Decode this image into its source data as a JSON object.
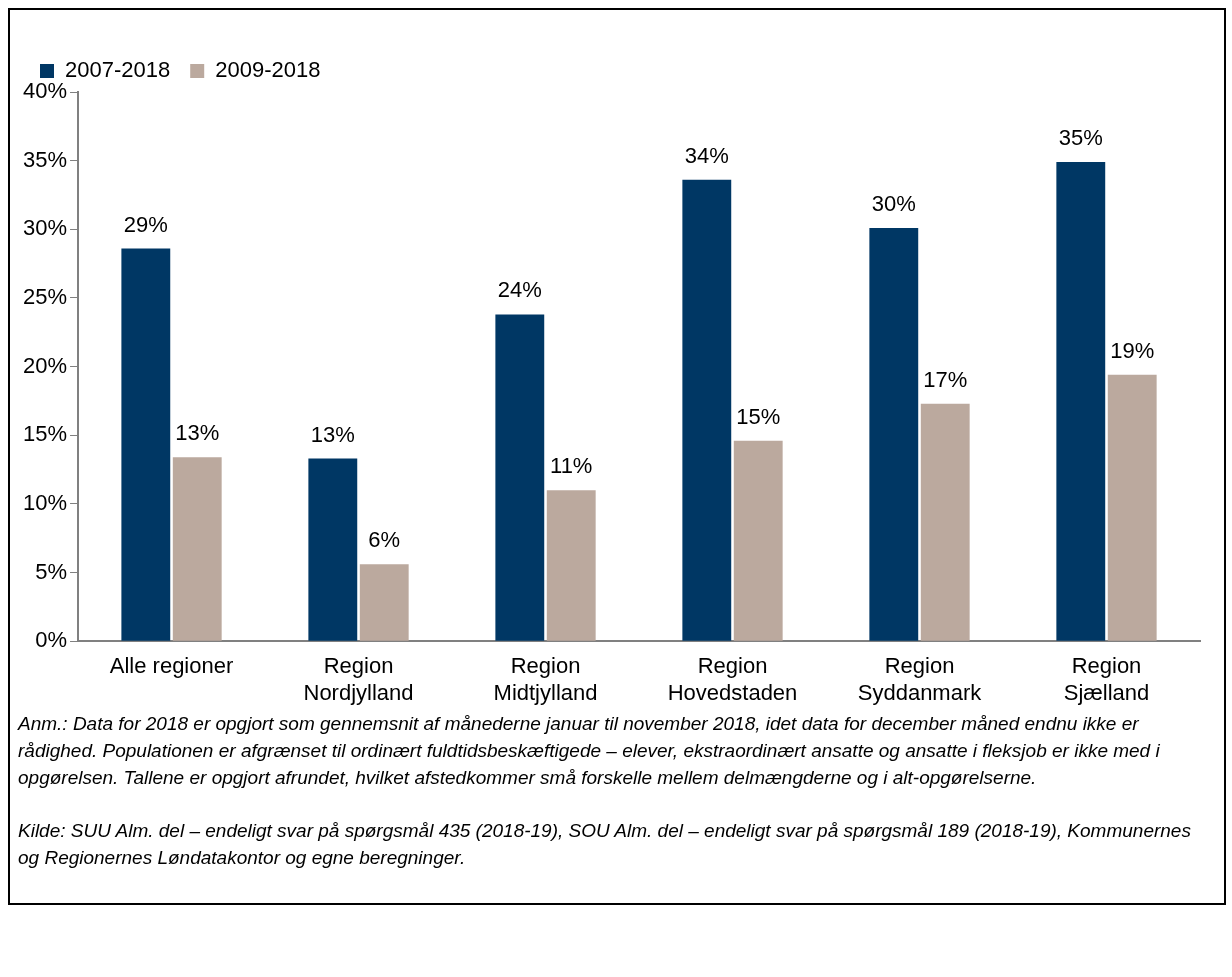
{
  "chart_data": {
    "type": "bar",
    "categories": [
      "Alle regioner",
      "Region Nordjylland",
      "Region Midtjylland",
      "Region Hovedstaden",
      "Region Syddanmark",
      "Region Sjælland"
    ],
    "series": [
      {
        "name": "2007-2018",
        "color": "#003764",
        "values": [
          28.6,
          13.3,
          23.8,
          33.6,
          30.1,
          34.9
        ],
        "value_labels": [
          "29%",
          "13%",
          "24%",
          "34%",
          "30%",
          "35%"
        ]
      },
      {
        "name": "2009-2018",
        "color": "#bba99e",
        "values": [
          13.4,
          5.6,
          11.0,
          14.6,
          17.3,
          19.4
        ],
        "value_labels": [
          "13%",
          "6%",
          "11%",
          "15%",
          "17%",
          "19%"
        ]
      }
    ],
    "ylim": [
      0,
      40
    ],
    "yticks": [
      {
        "value": 0,
        "label": "0%"
      },
      {
        "value": 5,
        "label": "5%"
      },
      {
        "value": 10,
        "label": "10%"
      },
      {
        "value": 15,
        "label": "15%"
      },
      {
        "value": 20,
        "label": "20%"
      },
      {
        "value": 25,
        "label": "25%"
      },
      {
        "value": 30,
        "label": "30%"
      },
      {
        "value": 35,
        "label": "35%"
      },
      {
        "value": 40,
        "label": "40%"
      }
    ],
    "grid": false,
    "legend": "top left",
    "annotations": [
      "Anm.: Data for 2018 er opgjort som gennemsnit af månederne januar til november 2018, idet data for december måned endnu ikke er rådighed. Populationen er afgrænset til ordinært fuldtidsbeskæftigede – elever, ekstraordinært ansatte og ansatte i fleksjob er ikke med i opgørelsen. Tallene er opgjort afrundet, hvilket afstedkommer små forskelle mellem delmængderne og i alt-opgørelserne.",
      "Kilde: SUU Alm. del – endeligt svar på spørgsmål 435 (2018-19), SOU Alm. del – endeligt svar på spørgsmål 189 (2018-19), Kommunernes og Regionernes Løndatakontor og egne beregninger."
    ]
  }
}
